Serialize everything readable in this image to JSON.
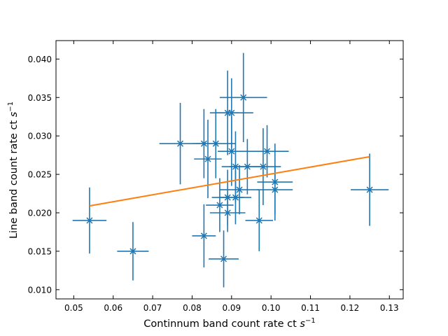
{
  "chart_data": {
    "type": "scatter",
    "title": "",
    "xlabel_main": "Continnum band count rate ct ",
    "xlabel_unit": "s",
    "xlabel_exp": "−1",
    "ylabel_main": "Line band count rate ct ",
    "ylabel_unit": "s",
    "ylabel_exp": "−1",
    "xlim": [
      0.0455,
      0.1335
    ],
    "ylim": [
      0.0088,
      0.0424
    ],
    "xticks": [
      0.05,
      0.06,
      0.07,
      0.08,
      0.09,
      0.1,
      0.11,
      0.12,
      0.13
    ],
    "xtick_labels": [
      "0.05",
      "0.06",
      "0.07",
      "0.08",
      "0.09",
      "0.10",
      "0.11",
      "0.12",
      "0.13"
    ],
    "yticks": [
      0.01,
      0.015,
      0.02,
      0.025,
      0.03,
      0.035,
      0.04
    ],
    "ytick_labels": [
      "0.010",
      "0.015",
      "0.020",
      "0.025",
      "0.030",
      "0.035",
      "0.040"
    ],
    "points": [
      {
        "x": 0.054,
        "y": 0.019,
        "xerr": 0.0043,
        "yerr": 0.0043
      },
      {
        "x": 0.065,
        "y": 0.015,
        "xerr": 0.004,
        "yerr": 0.0038
      },
      {
        "x": 0.077,
        "y": 0.029,
        "xerr": 0.0053,
        "yerr": 0.0053
      },
      {
        "x": 0.083,
        "y": 0.029,
        "xerr": 0.003,
        "yerr": 0.0045
      },
      {
        "x": 0.083,
        "y": 0.017,
        "xerr": 0.003,
        "yerr": 0.0041
      },
      {
        "x": 0.084,
        "y": 0.027,
        "xerr": 0.0035,
        "yerr": 0.0051
      },
      {
        "x": 0.086,
        "y": 0.029,
        "xerr": 0.005,
        "yerr": 0.0045
      },
      {
        "x": 0.087,
        "y": 0.021,
        "xerr": 0.0035,
        "yerr": 0.0035
      },
      {
        "x": 0.088,
        "y": 0.014,
        "xerr": 0.0038,
        "yerr": 0.0037
      },
      {
        "x": 0.089,
        "y": 0.033,
        "xerr": 0.003,
        "yerr": 0.0055
      },
      {
        "x": 0.089,
        "y": 0.022,
        "xerr": 0.004,
        "yerr": 0.0036
      },
      {
        "x": 0.089,
        "y": 0.02,
        "xerr": 0.0045,
        "yerr": 0.0025
      },
      {
        "x": 0.09,
        "y": 0.033,
        "xerr": 0.0055,
        "yerr": 0.0045
      },
      {
        "x": 0.09,
        "y": 0.028,
        "xerr": 0.0035,
        "yerr": 0.0045
      },
      {
        "x": 0.091,
        "y": 0.026,
        "xerr": 0.0035,
        "yerr": 0.0046
      },
      {
        "x": 0.091,
        "y": 0.022,
        "xerr": 0.004,
        "yerr": 0.0035
      },
      {
        "x": 0.092,
        "y": 0.023,
        "xerr": 0.005,
        "yerr": 0.0032
      },
      {
        "x": 0.093,
        "y": 0.035,
        "xerr": 0.006,
        "yerr": 0.0058
      },
      {
        "x": 0.094,
        "y": 0.026,
        "xerr": 0.0045,
        "yerr": 0.0036
      },
      {
        "x": 0.097,
        "y": 0.019,
        "xerr": 0.0035,
        "yerr": 0.004
      },
      {
        "x": 0.098,
        "y": 0.026,
        "xerr": 0.0045,
        "yerr": 0.005
      },
      {
        "x": 0.099,
        "y": 0.028,
        "xerr": 0.0055,
        "yerr": 0.0034
      },
      {
        "x": 0.101,
        "y": 0.024,
        "xerr": 0.0045,
        "yerr": 0.005
      },
      {
        "x": 0.101,
        "y": 0.023,
        "xerr": 0.0045,
        "yerr": 0.0032
      },
      {
        "x": 0.125,
        "y": 0.023,
        "xerr": 0.0048,
        "yerr": 0.0047
      }
    ],
    "fit_line": {
      "x": [
        0.054,
        0.125
      ],
      "y": [
        0.0209,
        0.0273
      ]
    },
    "colors": {
      "points": "#1f77b4",
      "fit": "#ff7f0e",
      "axes": "#000000"
    }
  }
}
